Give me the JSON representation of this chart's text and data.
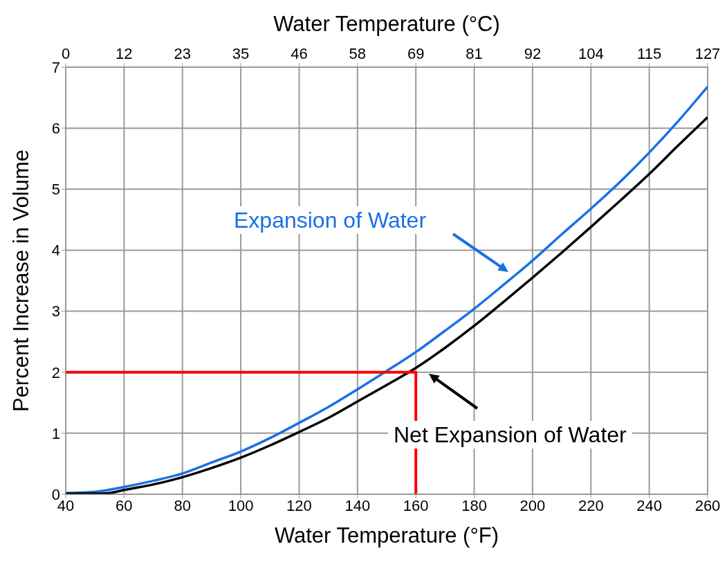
{
  "chart_data": {
    "type": "line",
    "xlabel": "Water Temperature (°F)",
    "x2label": "Water Temperature (°C)",
    "ylabel": "Percent Increase in Volume",
    "xlim": [
      40,
      260
    ],
    "xticks": [
      40,
      60,
      80,
      100,
      120,
      140,
      160,
      180,
      200,
      220,
      240,
      260
    ],
    "x2lim": [
      0,
      126.5
    ],
    "x2ticks": [
      0,
      {
        "value": 11.5,
        "label": "12"
      },
      23,
      {
        "value": 34.5,
        "label": "35"
      },
      46,
      {
        "value": 57.5,
        "label": "58"
      },
      69,
      {
        "value": 80.5,
        "label": "81"
      },
      92,
      {
        "value": 103.5,
        "label": "104"
      },
      115,
      {
        "value": 126.5,
        "label": "127"
      }
    ],
    "ylim": [
      0,
      7
    ],
    "yticks": [
      0,
      1,
      2,
      3,
      4,
      5,
      6,
      7
    ],
    "grid": true,
    "marker": "none",
    "line_style": "solid",
    "series": [
      {
        "name": "Expansion of Water",
        "color": "#1a6fe8",
        "x": [
          40,
          50,
          60,
          70,
          80,
          90,
          100,
          110,
          120,
          130,
          140,
          150,
          160,
          170,
          180,
          190,
          200,
          210,
          220,
          230,
          240,
          250,
          260
        ],
        "values": [
          0.02,
          0.04,
          0.12,
          0.22,
          0.34,
          0.52,
          0.7,
          0.92,
          1.17,
          1.43,
          1.72,
          2.02,
          2.33,
          2.68,
          3.04,
          3.43,
          3.83,
          4.26,
          4.68,
          5.12,
          5.6,
          6.12,
          6.68
        ]
      },
      {
        "name": "Net Expansion of Water",
        "color": "#000000",
        "x": [
          40,
          50,
          55,
          60,
          70,
          80,
          90,
          100,
          110,
          120,
          130,
          140,
          150,
          160,
          170,
          180,
          190,
          200,
          210,
          220,
          230,
          240,
          250,
          260
        ],
        "values": [
          0.01,
          0.01,
          0.02,
          0.07,
          0.16,
          0.28,
          0.43,
          0.6,
          0.8,
          1.02,
          1.25,
          1.52,
          1.79,
          2.07,
          2.4,
          2.76,
          3.15,
          3.55,
          3.96,
          4.38,
          4.81,
          5.25,
          5.72,
          6.18
        ]
      },
      {
        "type": "line",
        "color": "#ff0000",
        "x": [
          40,
          160,
          160
        ],
        "values": [
          2,
          2,
          0
        ]
      }
    ]
  }
}
